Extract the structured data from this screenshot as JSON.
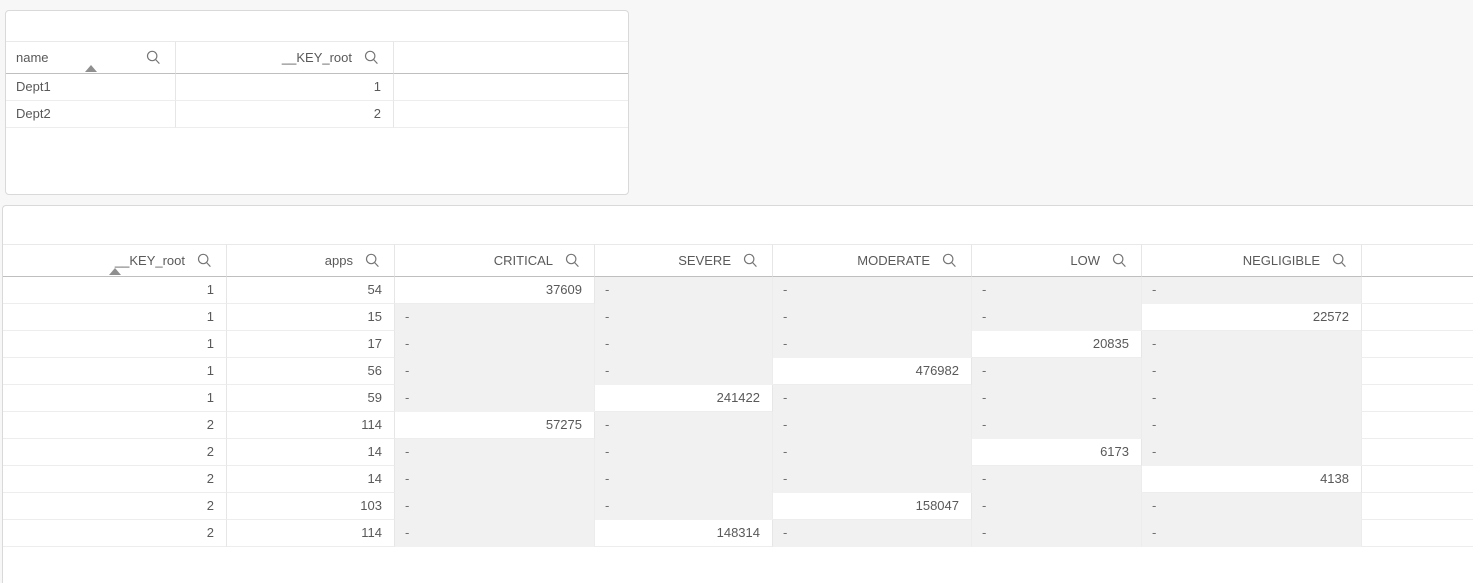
{
  "colors": {
    "page_background": "#f7f7f7",
    "panel_background": "#ffffff",
    "panel_border": "#d9d9d9",
    "header_bottom_border": "#bfbfbf",
    "row_separator": "#ededed",
    "column_separator": "#e6e6e6",
    "null_cell_background": "#f1f1f1",
    "text": "#595959",
    "icon": "#757575"
  },
  "icons": {
    "search": "magnifying-glass",
    "sort_ascending": "triangle-up"
  },
  "null_display": "-",
  "tables": {
    "departments": {
      "columns": [
        {
          "label": "name",
          "align": "left",
          "sorted": "asc",
          "search_icon": true
        },
        {
          "label": "__KEY_root",
          "align": "right",
          "sorted": "",
          "search_icon": true
        }
      ],
      "rows": [
        [
          "Dept1",
          "1"
        ],
        [
          "Dept2",
          "2"
        ]
      ]
    },
    "apps": {
      "columns": [
        {
          "label": "__KEY_root",
          "align": "right",
          "sorted": "asc",
          "search_icon": true
        },
        {
          "label": "apps",
          "align": "right",
          "sorted": "",
          "search_icon": true
        },
        {
          "label": "CRITICAL",
          "align": "right",
          "sorted": "",
          "search_icon": true
        },
        {
          "label": "SEVERE",
          "align": "right",
          "sorted": "",
          "search_icon": true
        },
        {
          "label": "MODERATE",
          "align": "right",
          "sorted": "",
          "search_icon": true
        },
        {
          "label": "LOW",
          "align": "right",
          "sorted": "",
          "search_icon": true
        },
        {
          "label": "NEGLIGIBLE",
          "align": "right",
          "sorted": "",
          "search_icon": true
        }
      ],
      "rows": [
        [
          "1",
          "54",
          "37609",
          "-",
          "-",
          "-",
          "-"
        ],
        [
          "1",
          "15",
          "-",
          "-",
          "-",
          "-",
          "22572"
        ],
        [
          "1",
          "17",
          "-",
          "-",
          "-",
          "20835",
          "-"
        ],
        [
          "1",
          "56",
          "-",
          "-",
          "476982",
          "-",
          "-"
        ],
        [
          "1",
          "59",
          "-",
          "241422",
          "-",
          "-",
          "-"
        ],
        [
          "2",
          "114",
          "57275",
          "-",
          "-",
          "-",
          "-"
        ],
        [
          "2",
          "14",
          "-",
          "-",
          "-",
          "6173",
          "-"
        ],
        [
          "2",
          "14",
          "-",
          "-",
          "-",
          "-",
          "4138"
        ],
        [
          "2",
          "103",
          "-",
          "-",
          "158047",
          "-",
          "-"
        ],
        [
          "2",
          "114",
          "-",
          "148314",
          "-",
          "-",
          "-"
        ]
      ]
    }
  }
}
